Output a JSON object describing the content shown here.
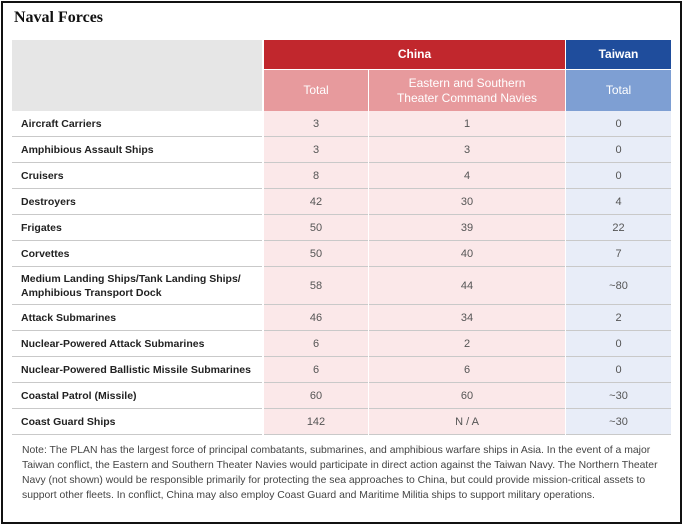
{
  "title": "Naval Forces",
  "header": {
    "china": "China",
    "taiwan": "Taiwan",
    "columns": [
      "Total",
      "Eastern and Southern Theater Command Navies",
      "Total"
    ]
  },
  "rows": [
    [
      "Aircraft Carriers",
      "3",
      "1",
      "0"
    ],
    [
      "Amphibious Assault Ships",
      "3",
      "3",
      "0"
    ],
    [
      "Cruisers",
      "8",
      "4",
      "0"
    ],
    [
      "Destroyers",
      "42",
      "30",
      "4"
    ],
    [
      "Frigates",
      "50",
      "39",
      "22"
    ],
    [
      "Corvettes",
      "50",
      "40",
      "7"
    ],
    [
      "Medium Landing Ships/Tank Landing Ships/ Amphibious Transport Dock",
      "58",
      "44",
      "~80"
    ],
    [
      "Attack Submarines",
      "46",
      "34",
      "2"
    ],
    [
      "Nuclear-Powered Attack Submarines",
      "6",
      "2",
      "0"
    ],
    [
      "Nuclear-Powered Ballistic Missile Submarines",
      "6",
      "6",
      "0"
    ],
    [
      "Coastal Patrol (Missile)",
      "60",
      "60",
      "~30"
    ],
    [
      "Coast Guard Ships",
      "142",
      "N / A",
      "~30"
    ]
  ],
  "note": "Note: The PLAN has the largest force of principal combatants, submarines, and amphibious warfare ships in Asia. In the event of a major Taiwan conflict, the Eastern and Southern Theater Navies would participate in direct action against the Taiwan Navy. The Northern Theater Navy (not shown) would be responsible primarily for protecting the sea approaches to China, but could provide mission-critical assets to support other fleets. In conflict, China may also employ Coast Guard and Maritime Militia ships to support military operations."
}
